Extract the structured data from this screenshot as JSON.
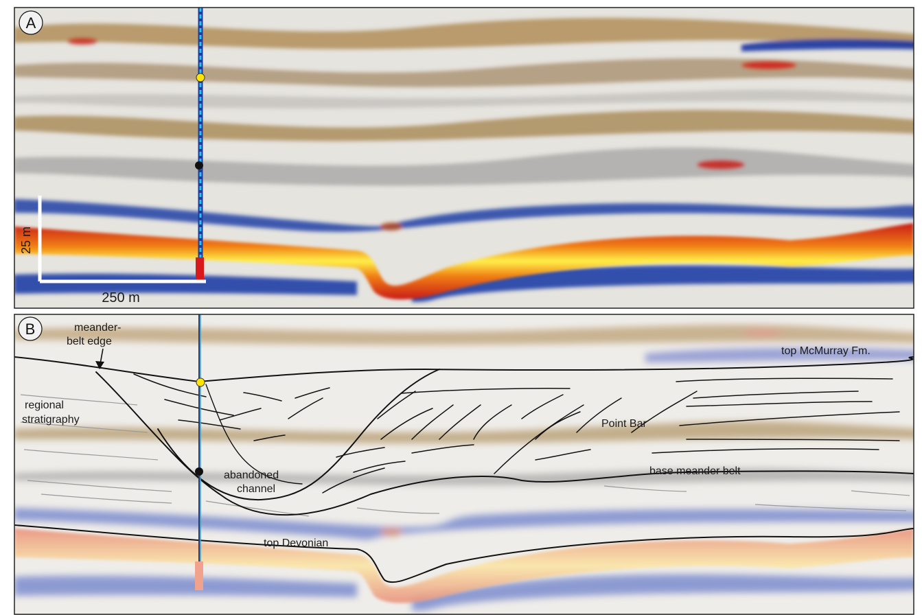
{
  "panels": {
    "a": {
      "label": "A"
    },
    "b": {
      "label": "B"
    }
  },
  "scale_bar": {
    "vertical": "25 m",
    "horizontal": "250 m"
  },
  "annotations": {
    "meander_belt_edge_line1": "meander-",
    "meander_belt_edge_line2": "belt edge",
    "regional_line1": "regional",
    "regional_line2": "stratigraphy",
    "abandoned_line1": "abandoned",
    "abandoned_line2": "channel",
    "point_bar": "Point Bar",
    "base_meander_belt": "base meander belt",
    "top_mcmurray": "top McMurray Fm.",
    "top_devonian": "top Devonian"
  },
  "colors": {
    "seismic_red": "#d7191c",
    "seismic_yellow": "#ffe626",
    "seismic_blue": "#1f3fa8",
    "seismic_brown": "#8c6420",
    "well_cyan": "#29c5e6",
    "marker_yellow": "#ffe600",
    "marker_black": "#111111"
  }
}
